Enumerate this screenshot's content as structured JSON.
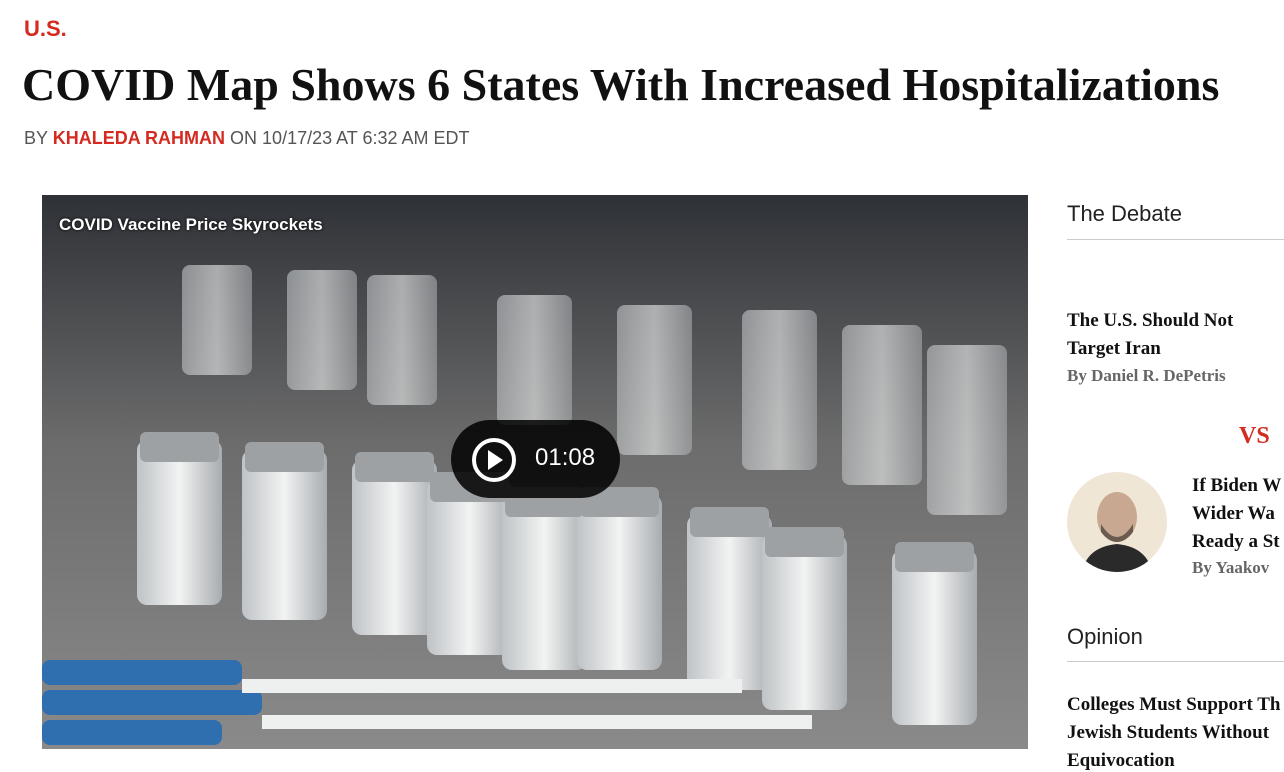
{
  "header": {
    "section": "U.S.",
    "title": "COVID Map Shows 6 States With Increased Hospitalizations",
    "byline": {
      "prefix": "BY",
      "author": "KHALEDA RAHMAN",
      "date": "ON 10/17/23 AT 6:32 AM EDT"
    }
  },
  "video": {
    "title": "COVID Vaccine Price Skyrockets",
    "duration": "01:08"
  },
  "sidebar": {
    "debate": {
      "heading": "The Debate",
      "left": {
        "title_lines": [
          "The U.S. Should Not",
          "Target Iran"
        ],
        "author": "By Daniel R. DePetris"
      },
      "vs": "VS",
      "right": {
        "title_lines": [
          "If Biden W",
          "Wider Wa",
          "Ready a St"
        ],
        "author": "By Yaakov"
      }
    },
    "opinion": {
      "heading": "Opinion",
      "articles": [
        {
          "title_lines": [
            "Colleges Must Support Th",
            "Jewish Students Without",
            "Equivocation"
          ]
        }
      ]
    }
  }
}
